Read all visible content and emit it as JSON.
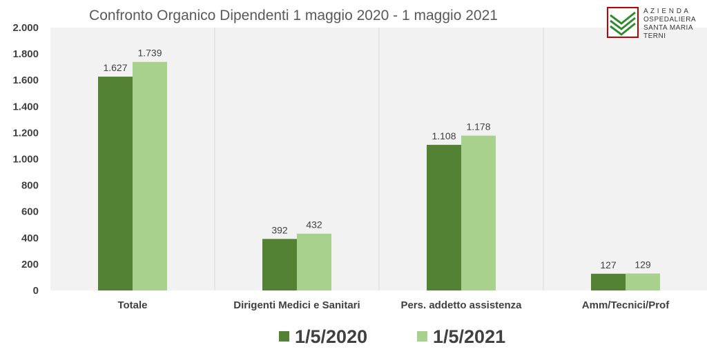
{
  "chart_data": {
    "type": "bar",
    "title": "Confronto Organico Dipendenti 1 maggio 2020 - 1 maggio 2021",
    "categories": [
      "Totale",
      "Dirigenti Medici e Sanitari",
      "Pers. addetto assistenza",
      "Amm/Tecnici/Prof"
    ],
    "series": [
      {
        "name": "1/5/2020",
        "values": [
          1627,
          392,
          1108,
          127
        ],
        "labels": [
          "1.627",
          "392",
          "1.108",
          "127"
        ],
        "color": "#548235"
      },
      {
        "name": "1/5/2021",
        "values": [
          1739,
          432,
          1178,
          129
        ],
        "labels": [
          "1.739",
          "432",
          "1.178",
          "129"
        ],
        "color": "#A9D18E"
      }
    ],
    "ylim": [
      0,
      2000
    ],
    "yticks": [
      0,
      200,
      400,
      600,
      800,
      1000,
      1200,
      1400,
      1600,
      1800,
      2000
    ],
    "ytick_labels": [
      "0",
      "200",
      "400",
      "600",
      "800",
      "1.000",
      "1.200",
      "1.400",
      "1.600",
      "1.800",
      "2.000"
    ],
    "grid": "vertical category separators",
    "legend_position": "bottom",
    "xlabel": "",
    "ylabel": ""
  },
  "logo": {
    "lines": [
      "A Z I E N D A",
      "OSPEDALIERA",
      "SANTA MARIA",
      "TERNI"
    ],
    "accent": "#C00000",
    "green": "#2E8B2E"
  },
  "colors": {
    "plot_background": "#F2F2F2",
    "gridline": "#D9D9D9"
  }
}
